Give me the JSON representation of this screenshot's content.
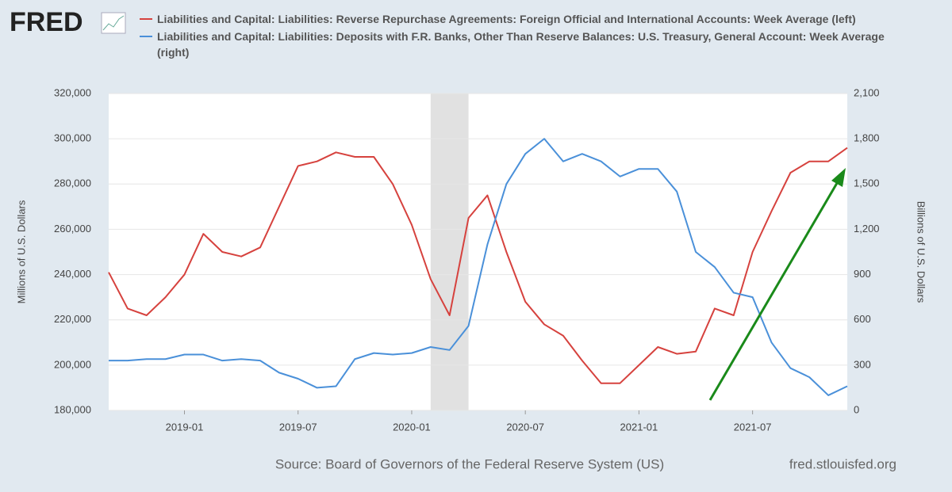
{
  "logo": "FRED",
  "chart_data": {
    "type": "line",
    "x": [
      "2018-09",
      "2018-10",
      "2018-11",
      "2018-12",
      "2019-01",
      "2019-02",
      "2019-03",
      "2019-04",
      "2019-05",
      "2019-06",
      "2019-07",
      "2019-08",
      "2019-09",
      "2019-10",
      "2019-11",
      "2019-12",
      "2020-01",
      "2020-02",
      "2020-03",
      "2020-04",
      "2020-05",
      "2020-06",
      "2020-07",
      "2020-08",
      "2020-09",
      "2020-10",
      "2020-11",
      "2020-12",
      "2021-01",
      "2021-02",
      "2021-03",
      "2021-04",
      "2021-05",
      "2021-06",
      "2021-07",
      "2021-08",
      "2021-09",
      "2021-10",
      "2021-11",
      "2021-12"
    ],
    "series": [
      {
        "name": "Liabilities and Capital: Liabilities: Reverse Repurchase Agreements: Foreign Official and International Accounts: Week Average (left)",
        "color": "#d6423e",
        "axis": "y",
        "values": [
          241000,
          225000,
          222000,
          230000,
          240000,
          258000,
          250000,
          248000,
          252000,
          270000,
          288000,
          290000,
          294000,
          292000,
          292000,
          280000,
          262000,
          238000,
          222000,
          265000,
          275000,
          250000,
          228000,
          218000,
          213000,
          202000,
          192000,
          192000,
          200000,
          208000,
          205000,
          206000,
          225000,
          222000,
          250000,
          268000,
          285000,
          290000,
          290000,
          296000
        ]
      },
      {
        "name": "Liabilities and Capital: Liabilities: Deposits with F.R. Banks, Other Than Reserve Balances: U.S. Treasury, General Account: Week Average (right)",
        "color": "#4a90d9",
        "axis": "y2",
        "values": [
          330,
          330,
          340,
          340,
          370,
          370,
          330,
          340,
          330,
          250,
          210,
          150,
          160,
          340,
          380,
          370,
          380,
          420,
          400,
          560,
          1100,
          1500,
          1700,
          1800,
          1650,
          1700,
          1650,
          1550,
          1600,
          1600,
          1450,
          1050,
          950,
          780,
          750,
          450,
          280,
          220,
          100,
          160
        ]
      }
    ],
    "xlim": [
      "2018-09",
      "2021-12"
    ],
    "xticks": [
      "2019-01",
      "2019-07",
      "2020-01",
      "2020-07",
      "2021-01",
      "2021-07"
    ],
    "ylim": [
      180000,
      320000
    ],
    "yticks": [
      {
        "value": 180000,
        "label": "180,000"
      },
      {
        "value": 200000,
        "label": "200,000"
      },
      {
        "value": 220000,
        "label": "220,000"
      },
      {
        "value": 240000,
        "label": "240,000"
      },
      {
        "value": 260000,
        "label": "260,000"
      },
      {
        "value": 280000,
        "label": "280,000"
      },
      {
        "value": 300000,
        "label": "300,000"
      },
      {
        "value": 320000,
        "label": "320,000"
      }
    ],
    "y2lim": [
      0,
      2100
    ],
    "y2ticks": [
      0,
      300,
      600,
      900,
      {
        "value": 1200,
        "label": "1,200"
      },
      {
        "value": 1500,
        "label": "1,500"
      },
      {
        "value": 1800,
        "label": "1,800"
      },
      {
        "value": 2100,
        "label": "2,100"
      }
    ],
    "ylabel": "Millions of U.S. Dollars",
    "y2label": "Billions of U.S. Dollars",
    "recession": [
      "2020-02",
      "2020-04"
    ],
    "grid": true,
    "source": "Source: Board of Governors of the Federal Reserve System (US)",
    "site": "fred.stlouisfed.org"
  }
}
